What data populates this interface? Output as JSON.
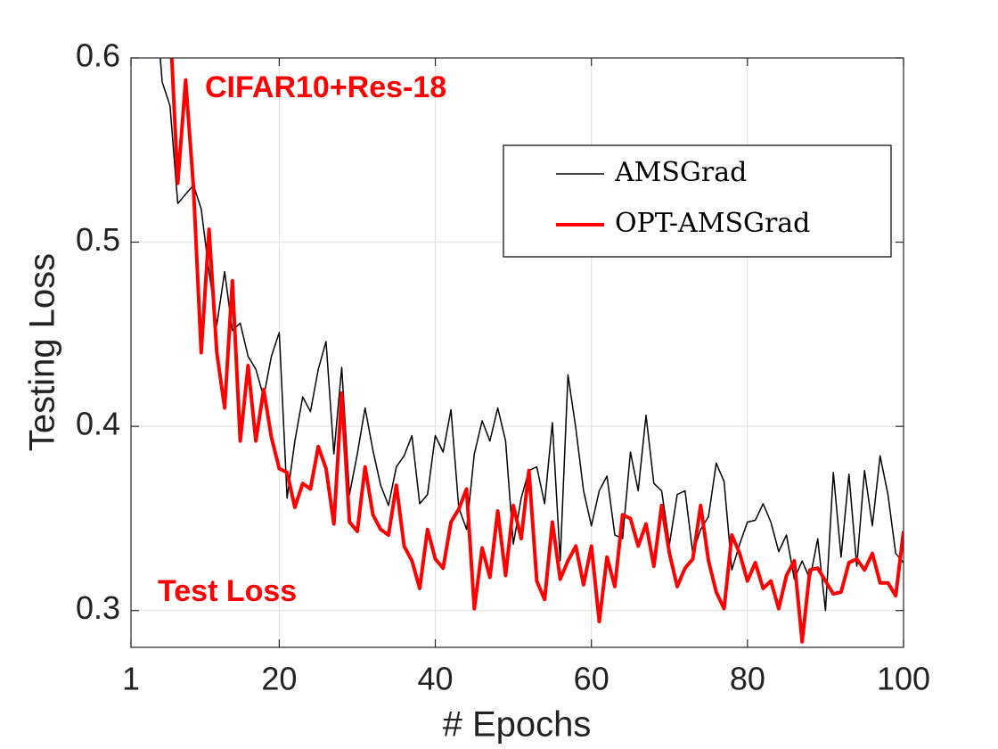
{
  "chart_data": {
    "type": "line",
    "xlabel": "# Epochs",
    "ylabel": "Testing Loss",
    "annotations": [
      "CIFAR10+Res-18",
      "Test Loss"
    ],
    "x": [
      1,
      2,
      3,
      4,
      5,
      6,
      7,
      8,
      9,
      10,
      11,
      12,
      13,
      14,
      15,
      16,
      17,
      18,
      19,
      20,
      21,
      22,
      23,
      24,
      25,
      26,
      27,
      28,
      29,
      30,
      31,
      32,
      33,
      34,
      35,
      36,
      37,
      38,
      39,
      40,
      41,
      42,
      43,
      44,
      45,
      46,
      47,
      48,
      49,
      50,
      51,
      52,
      53,
      54,
      55,
      56,
      57,
      58,
      59,
      60,
      61,
      62,
      63,
      64,
      65,
      66,
      67,
      68,
      69,
      70,
      71,
      72,
      73,
      74,
      75,
      76,
      77,
      78,
      79,
      80,
      81,
      82,
      83,
      84,
      85,
      86,
      87,
      88,
      89,
      90,
      91,
      92,
      93,
      94,
      95,
      96,
      97,
      98,
      99,
      100
    ],
    "series": [
      {
        "name": "AMSGrad",
        "color": "#000000",
        "width": 1.5,
        "values": [
          null,
          null,
          null,
          0.64,
          0.587,
          0.574,
          0.521,
          0.526,
          0.531,
          0.518,
          0.484,
          0.455,
          0.484,
          0.452,
          0.456,
          0.438,
          0.431,
          0.416,
          0.438,
          0.451,
          0.361,
          0.392,
          0.416,
          0.408,
          0.431,
          0.446,
          0.385,
          0.432,
          0.363,
          0.385,
          0.41,
          0.387,
          0.368,
          0.357,
          0.378,
          0.384,
          0.395,
          0.358,
          0.363,
          0.395,
          0.386,
          0.409,
          0.356,
          0.344,
          0.385,
          0.403,
          0.392,
          0.41,
          0.392,
          0.336,
          0.361,
          0.376,
          0.378,
          0.358,
          0.402,
          0.327,
          0.428,
          0.399,
          0.365,
          0.346,
          0.365,
          0.373,
          0.341,
          0.339,
          0.386,
          0.365,
          0.406,
          0.369,
          0.365,
          0.336,
          0.363,
          0.365,
          0.331,
          0.344,
          0.351,
          0.38,
          0.37,
          0.322,
          0.336,
          0.348,
          0.349,
          0.358,
          0.348,
          0.332,
          0.341,
          0.317,
          0.327,
          0.317,
          0.339,
          0.3,
          0.375,
          0.329,
          0.374,
          0.324,
          0.376,
          0.346,
          0.384,
          0.363,
          0.331,
          0.326
        ]
      },
      {
        "name": "OPT-AMSGrad",
        "color": "#ff0000",
        "width": 4,
        "values": [
          null,
          null,
          null,
          null,
          0.6,
          0.62,
          0.532,
          0.588,
          0.53,
          0.44,
          0.507,
          0.44,
          0.41,
          0.479,
          0.392,
          0.433,
          0.392,
          0.42,
          0.394,
          0.377,
          0.375,
          0.356,
          0.369,
          0.366,
          0.389,
          0.377,
          0.347,
          0.418,
          0.348,
          0.343,
          0.378,
          0.352,
          0.344,
          0.341,
          0.368,
          0.335,
          0.327,
          0.312,
          0.344,
          0.328,
          0.323,
          0.348,
          0.355,
          0.366,
          0.301,
          0.334,
          0.318,
          0.354,
          0.319,
          0.357,
          0.339,
          0.376,
          0.316,
          0.306,
          0.348,
          0.317,
          0.327,
          0.335,
          0.314,
          0.335,
          0.294,
          0.329,
          0.313,
          0.352,
          0.35,
          0.335,
          0.347,
          0.324,
          0.357,
          0.331,
          0.313,
          0.323,
          0.328,
          0.357,
          0.327,
          0.31,
          0.301,
          0.341,
          0.331,
          0.316,
          0.326,
          0.312,
          0.316,
          0.301,
          0.319,
          0.327,
          0.283,
          0.322,
          0.323,
          0.316,
          0.309,
          0.31,
          0.326,
          0.328,
          0.322,
          0.331,
          0.315,
          0.315,
          0.308,
          0.343
        ]
      }
    ],
    "xlim": [
      1,
      100
    ],
    "xticks": [
      1,
      20,
      40,
      60,
      80,
      100
    ],
    "ylim": [
      0.28,
      0.6
    ],
    "yticks": [
      0.3,
      0.4,
      0.5,
      0.6
    ],
    "grid": true,
    "legend": "upper right"
  }
}
